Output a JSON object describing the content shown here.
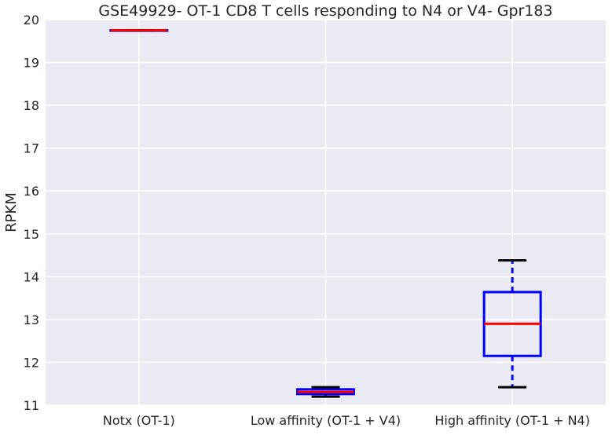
{
  "chart_data": {
    "type": "box",
    "title": "GSE49929- OT-1 CD8 T cells responding to N4 or V4- Gpr183",
    "xlabel": "",
    "ylabel": "RPKM",
    "ylim": [
      11,
      20
    ],
    "yticks": [
      "11",
      "12",
      "13",
      "14",
      "15",
      "16",
      "17",
      "18",
      "19",
      "20"
    ],
    "grid": true,
    "categories": [
      "Notx (OT-1)",
      "Low affinity (OT-1 + V4)",
      "High affinity (OT-1 + N4)"
    ],
    "boxes": [
      {
        "category": "Notx (OT-1)",
        "whisker_low": 19.75,
        "q1": 19.75,
        "median": 19.75,
        "q3": 19.75,
        "whisker_high": 19.75
      },
      {
        "category": "Low affinity (OT-1 + V4)",
        "whisker_low": 11.2,
        "q1": 11.26,
        "median": 11.31,
        "q3": 11.37,
        "whisker_high": 11.42
      },
      {
        "category": "High affinity (OT-1 + N4)",
        "whisker_low": 11.42,
        "q1": 12.15,
        "median": 12.9,
        "q3": 13.64,
        "whisker_high": 14.38
      }
    ],
    "colors": {
      "background": "#eaeaf2",
      "grid": "#ffffff",
      "box": "#0000ff",
      "median": "#ff0000",
      "whisker": "#0000ff",
      "cap": "#000000"
    }
  }
}
